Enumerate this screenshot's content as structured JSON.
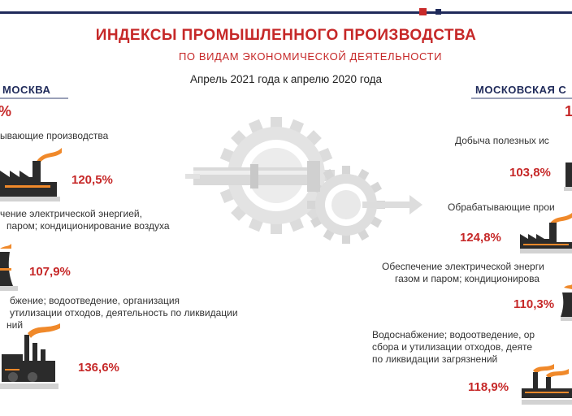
{
  "title": "ИНДЕКСЫ ПРОМЫШЛЕННОГО ПРОИЗВОДСТВА",
  "subtitle": "ПО ВИДАМ ЭКОНОМИЧЕСКОЙ ДЕЯТЕЛЬНОСТИ",
  "period": "Апрель 2021 года к апрелю 2020 года",
  "moscow": {
    "region": "МОСКВА",
    "total": "%",
    "items": [
      {
        "label_lines": [
          "ывающие производства"
        ],
        "value": "120,5%"
      },
      {
        "label_lines": [
          "чение электрической энергией,",
          "паром; кондиционирование воздуха"
        ],
        "value": "107,9%"
      },
      {
        "label_lines": [
          "бжение; водоотведение, организация",
          "утилизации отходов, деятельность по ликвидации",
          "ний"
        ],
        "value": "136,6%"
      }
    ]
  },
  "oblast": {
    "region": "МОСКОВСКАЯ С",
    "total": "1",
    "items": [
      {
        "label_lines": [
          "Добыча полезных ис"
        ],
        "value": "103,8%"
      },
      {
        "label_lines": [
          "Обрабатывающие прои"
        ],
        "value": "124,8%"
      },
      {
        "label_lines": [
          "Обеспечение электрической энерги",
          "газом и паром; кондиционирова"
        ],
        "value": "110,3%"
      },
      {
        "label_lines": [
          "Водоснабжение; водоотведение, ор",
          "сбора и утилизации отходов, деяте",
          "по ликвидации загрязнений"
        ],
        "value": "118,9%"
      }
    ]
  },
  "colors": {
    "accent_red": "#c62828",
    "navy": "#1f2a5a",
    "orange_smoke": "#f0892a"
  }
}
